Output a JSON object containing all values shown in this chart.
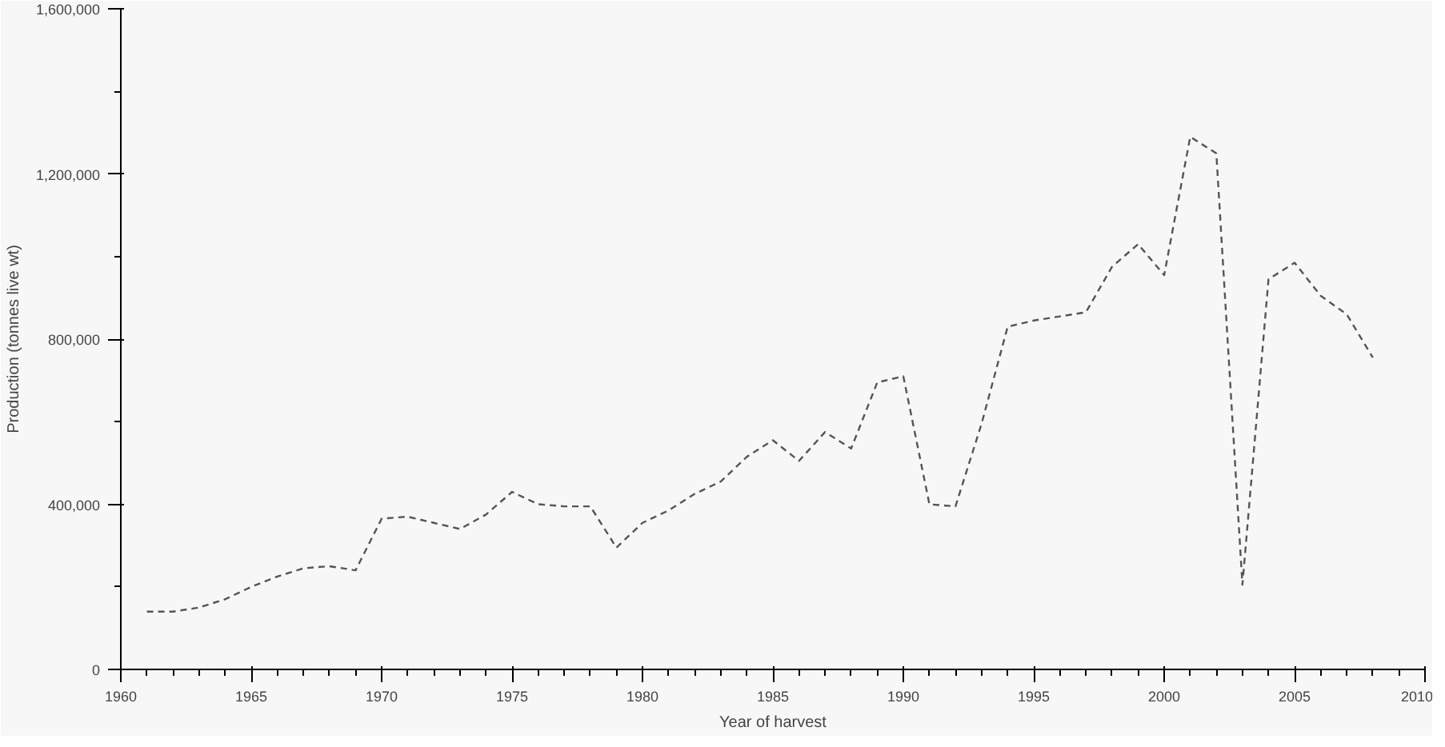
{
  "chart_data": {
    "type": "line",
    "xlabel": "Year of harvest",
    "ylabel": "Production (tonnes live wt)",
    "x": [
      1961,
      1962,
      1963,
      1964,
      1965,
      1966,
      1967,
      1968,
      1969,
      1970,
      1971,
      1972,
      1973,
      1974,
      1975,
      1976,
      1977,
      1978,
      1979,
      1980,
      1981,
      1982,
      1983,
      1984,
      1985,
      1986,
      1987,
      1988,
      1989,
      1990,
      1991,
      1992,
      1993,
      1994,
      1995,
      1996,
      1997,
      1998,
      1999,
      2000,
      2001,
      2002,
      2003,
      2004,
      2005,
      2006,
      2007,
      2008
    ],
    "series": [
      {
        "color": "#555555",
        "values": [
          140000,
          140000,
          150000,
          170000,
          200000,
          225000,
          245000,
          250000,
          240000,
          365000,
          370000,
          355000,
          340000,
          375000,
          430000,
          400000,
          395000,
          395000,
          295000,
          355000,
          385000,
          425000,
          455000,
          515000,
          555000,
          505000,
          575000,
          535000,
          695000,
          710000,
          400000,
          395000,
          595000,
          830000,
          845000,
          855000,
          865000,
          975000,
          1030000,
          955000,
          1290000,
          1250000,
          205000,
          945000,
          985000,
          905000,
          860000,
          755000
        ]
      }
    ],
    "xlim": [
      1960,
      2010
    ],
    "ylim": [
      0,
      1600000
    ],
    "xticks": [
      1960,
      1965,
      1970,
      1975,
      1980,
      1985,
      1990,
      1995,
      2000,
      2005,
      2010
    ],
    "yticks": [
      {
        "value": 0,
        "label": "0"
      },
      {
        "value": 400000,
        "label": "400,000"
      },
      {
        "value": 800000,
        "label": "800,000"
      },
      {
        "value": 1200000,
        "label": "1,200,000"
      },
      {
        "value": 1600000,
        "label": "1,600,000"
      }
    ],
    "grid": false,
    "marker": "none",
    "line_style": "dashed"
  }
}
